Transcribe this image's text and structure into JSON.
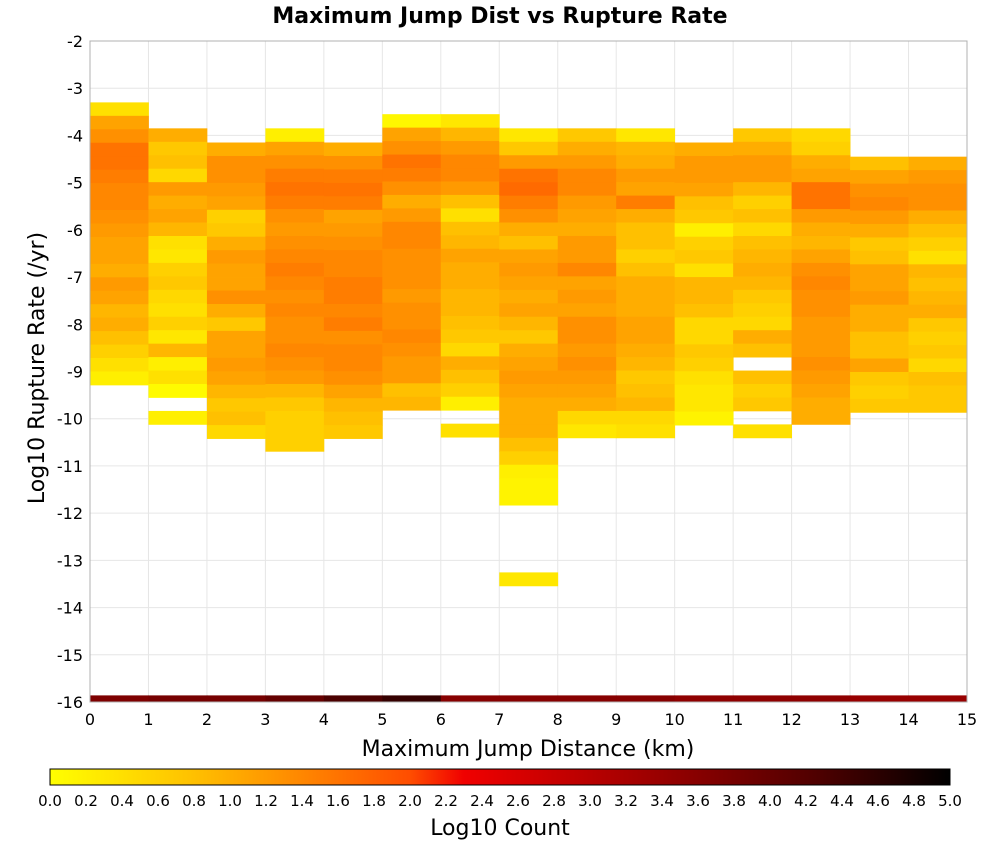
{
  "chart_data": {
    "type": "heatmap",
    "title": "Maximum Jump Dist vs Rupture Rate",
    "xlabel": "Maximum Jump Distance (km)",
    "ylabel": "Log10 Rupture Rate (/yr)",
    "xlim": [
      0,
      15
    ],
    "ylim": [
      -16,
      -2
    ],
    "x_ticks": [
      "0",
      "1",
      "2",
      "3",
      "4",
      "5",
      "6",
      "7",
      "8",
      "9",
      "10",
      "11",
      "12",
      "13",
      "14",
      "15"
    ],
    "y_ticks": [
      "-2",
      "-3",
      "-4",
      "-5",
      "-6",
      "-7",
      "-8",
      "-9",
      "-10",
      "-11",
      "-12",
      "-13",
      "-14",
      "-15",
      "-16"
    ],
    "bin_width_x": 1,
    "bin_height_y": 0.285,
    "colorbar": {
      "label": "Log10 Count",
      "range": [
        0,
        5
      ],
      "ticks": [
        "0.0",
        "0.2",
        "0.4",
        "0.6",
        "0.8",
        "1.0",
        "1.2",
        "1.4",
        "1.6",
        "1.8",
        "2.0",
        "2.2",
        "2.4",
        "2.6",
        "2.8",
        "3.0",
        "3.2",
        "3.4",
        "3.6",
        "3.8",
        "4.0",
        "4.2",
        "4.4",
        "4.6",
        "4.8",
        "5.0"
      ]
    },
    "grid": true,
    "bottom_row_y": -16,
    "bottom_row": [
      3.7,
      3.8,
      3.8,
      4.0,
      4.3,
      4.5,
      3.6,
      3.6,
      3.6,
      3.6,
      3.5,
      3.5,
      3.5,
      3.4,
      3.4
    ],
    "columns": [
      {
        "y_top": -3.3,
        "values": [
          0.4,
          1.1,
          1.3,
          1.6,
          1.6,
          1.5,
          1.4,
          1.4,
          1.3,
          1.2,
          1.1,
          1.1,
          1.0,
          1.2,
          1.1,
          0.9,
          1.0,
          0.8,
          0.6,
          0.4,
          0.2
        ]
      },
      {
        "y_top": -3.85,
        "values": [
          1.0,
          0.7,
          0.8,
          0.5,
          1.2,
          1.0,
          1.1,
          0.9,
          0.4,
          0.3,
          0.6,
          0.7,
          0.5,
          0.4,
          0.6,
          0.3,
          0.9,
          0.2,
          0.4,
          0.05,
          null,
          0.2
        ]
      },
      {
        "y_top": -4.15,
        "values": [
          1.0,
          1.3,
          1.3,
          1.2,
          1.1,
          0.6,
          0.7,
          1.0,
          1.2,
          1.1,
          1.1,
          1.3,
          1.0,
          0.7,
          1.1,
          1.1,
          1.2,
          1.1,
          0.9,
          0.7,
          0.8,
          0.5
        ]
      },
      {
        "y_top": -3.85,
        "values": [
          0.2,
          1.1,
          1.3,
          1.5,
          1.6,
          1.5,
          1.3,
          1.2,
          1.3,
          1.4,
          1.5,
          1.4,
          1.3,
          1.4,
          1.3,
          1.3,
          1.4,
          1.3,
          1.2,
          0.9,
          0.7,
          0.6,
          0.6,
          0.6
        ]
      },
      {
        "y_top": -4.15,
        "values": [
          1.0,
          1.3,
          1.5,
          1.6,
          1.5,
          1.1,
          1.2,
          1.3,
          1.4,
          1.4,
          1.5,
          1.5,
          1.4,
          1.5,
          1.3,
          1.4,
          1.4,
          1.3,
          1.1,
          0.9,
          0.8,
          0.7
        ]
      },
      {
        "y_top": -3.55,
        "values": [
          0.1,
          1.1,
          1.3,
          1.6,
          1.5,
          1.3,
          1.0,
          1.2,
          1.4,
          1.4,
          1.3,
          1.3,
          1.3,
          1.2,
          1.3,
          1.3,
          1.4,
          1.3,
          1.2,
          1.2,
          0.8,
          0.9
        ]
      },
      {
        "y_top": -3.55,
        "values": [
          0.3,
          0.9,
          1.2,
          1.4,
          1.4,
          1.2,
          0.8,
          0.4,
          0.8,
          0.9,
          1.1,
          1.0,
          1.0,
          0.9,
          0.9,
          0.8,
          0.7,
          0.5,
          1.0,
          0.8,
          0.6,
          0.2,
          null,
          0.4
        ]
      },
      {
        "y_top": -3.85,
        "values": [
          0.3,
          0.7,
          1.2,
          1.6,
          1.7,
          1.5,
          1.3,
          1.0,
          0.8,
          1.1,
          1.2,
          1.1,
          1.0,
          1.1,
          0.9,
          0.7,
          1.0,
          1.1,
          1.2,
          1.1,
          1.0,
          1.0,
          1.0,
          0.8,
          0.6,
          0.2,
          0.15,
          0.15,
          null,
          null,
          null,
          null,
          null,
          0.3
        ]
      },
      {
        "y_top": -3.85,
        "values": [
          0.7,
          1.0,
          1.2,
          1.4,
          1.4,
          1.2,
          1.1,
          1.0,
          1.2,
          1.2,
          1.4,
          1.1,
          1.2,
          1.1,
          1.3,
          1.3,
          1.2,
          1.3,
          1.2,
          1.1,
          1.0,
          0.5,
          0.3
        ]
      },
      {
        "y_top": -3.85,
        "values": [
          0.3,
          0.9,
          1.0,
          1.2,
          1.1,
          1.5,
          1.0,
          0.8,
          0.8,
          0.6,
          0.8,
          1.0,
          1.0,
          1.0,
          1.1,
          1.1,
          1.0,
          0.9,
          0.7,
          0.8,
          0.9,
          0.5,
          0.4
        ]
      },
      {
        "y_top": -4.15,
        "values": [
          1.0,
          1.2,
          1.2,
          1.1,
          0.8,
          0.7,
          0.2,
          0.6,
          0.7,
          0.4,
          0.9,
          0.9,
          0.8,
          0.5,
          0.5,
          0.7,
          0.6,
          0.4,
          0.3,
          0.3,
          0.15
        ]
      },
      {
        "y_top": -3.85,
        "values": [
          0.7,
          1.0,
          1.2,
          1.2,
          0.9,
          0.6,
          0.8,
          0.5,
          0.8,
          0.9,
          1.0,
          0.9,
          0.7,
          0.6,
          0.5,
          1.0,
          0.8,
          null,
          0.8,
          0.6,
          0.7,
          null,
          0.4
        ]
      },
      {
        "y_top": -3.85,
        "values": [
          0.5,
          0.6,
          1.0,
          1.1,
          1.6,
          1.6,
          1.2,
          1.0,
          0.9,
          1.1,
          1.3,
          1.4,
          1.3,
          1.3,
          1.2,
          1.2,
          1.2,
          1.3,
          1.2,
          1.1,
          1.0,
          1.0
        ]
      },
      {
        "y_top": -4.45,
        "values": [
          0.8,
          1.1,
          1.3,
          1.4,
          1.2,
          1.0,
          0.7,
          0.8,
          1.1,
          1.1,
          1.2,
          1.0,
          1.0,
          0.8,
          0.8,
          1.1,
          0.7,
          0.6,
          0.7
        ]
      },
      {
        "y_top": -4.45,
        "values": [
          1.0,
          1.2,
          1.3,
          1.3,
          1.0,
          0.8,
          0.6,
          0.4,
          0.9,
          0.8,
          0.9,
          1.0,
          0.7,
          0.6,
          0.7,
          0.5,
          0.8,
          0.7,
          0.7
        ]
      }
    ]
  }
}
